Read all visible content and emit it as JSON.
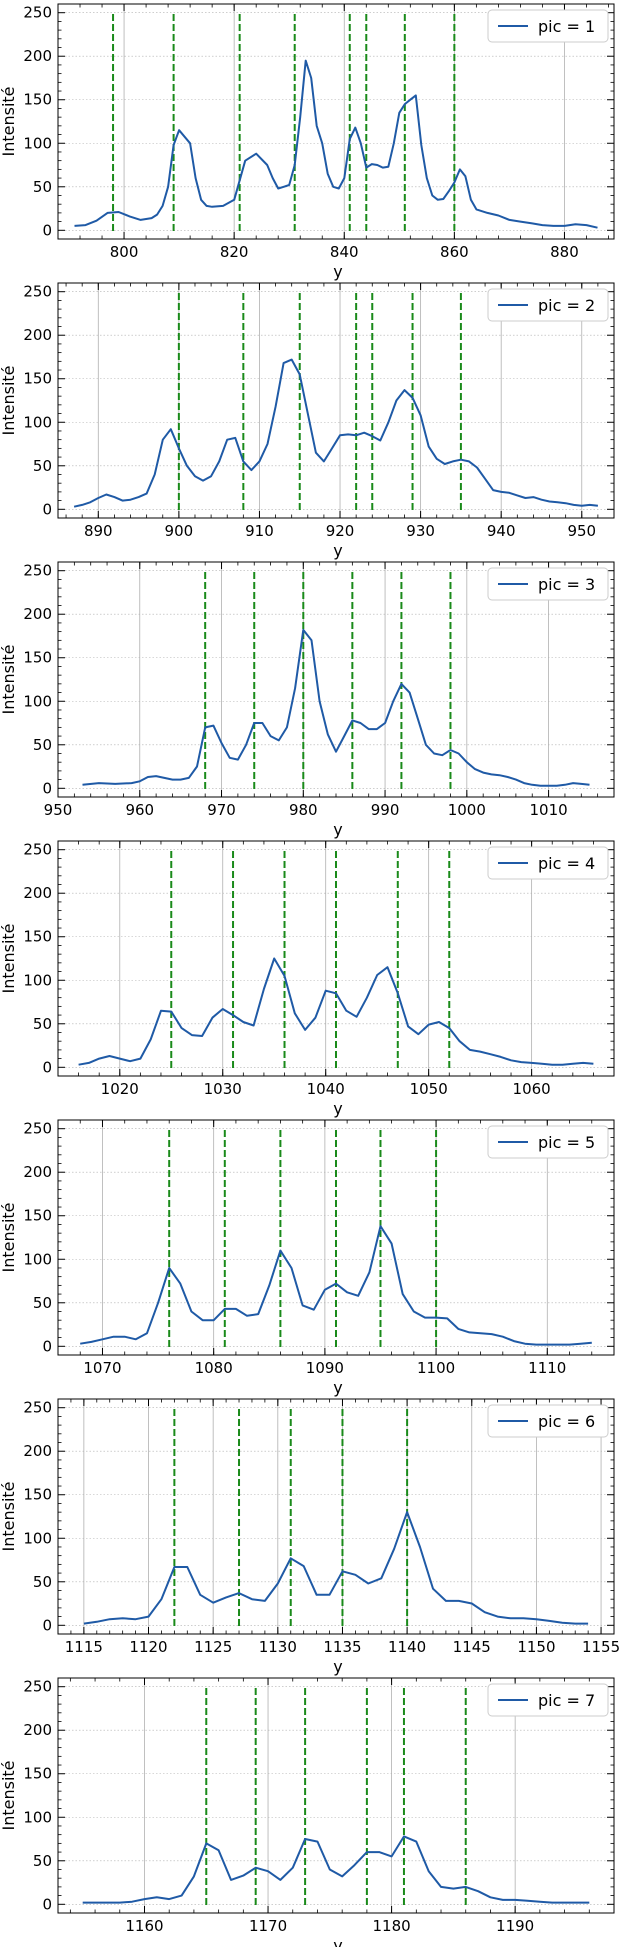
{
  "chart_data": [
    {
      "type": "line",
      "xlabel": "y",
      "ylabel": "Intensité",
      "legend": "pic = 1",
      "legend_position": "top-right",
      "grid": true,
      "xlim": [
        788,
        889
      ],
      "ylim": [
        -10,
        260
      ],
      "xticks": [
        800,
        820,
        840,
        860,
        880
      ],
      "yticks": [
        0,
        50,
        100,
        150,
        200,
        250
      ],
      "peaks": [
        798,
        809,
        821,
        831,
        841,
        844,
        851,
        860
      ],
      "series_color": "#1f5aa6",
      "peak_color": "#1a8a1a",
      "x": [
        791,
        793,
        795,
        797,
        799,
        801,
        803,
        805,
        806,
        807,
        808,
        809,
        810,
        812,
        813,
        814,
        815,
        816,
        818,
        820,
        822,
        824,
        826,
        827,
        828,
        829,
        830,
        831,
        832,
        833,
        834,
        835,
        836,
        837,
        838,
        839,
        840,
        841,
        842,
        843,
        844,
        845,
        846,
        847,
        848,
        849,
        850,
        851,
        852,
        853,
        854,
        855,
        856,
        857,
        858,
        859,
        860,
        861,
        862,
        863,
        864,
        866,
        868,
        870,
        872,
        874,
        876,
        878,
        880,
        882,
        884,
        886
      ],
      "y": [
        5,
        6,
        11,
        20,
        21,
        16,
        12,
        14,
        18,
        28,
        50,
        98,
        115,
        100,
        60,
        35,
        28,
        27,
        28,
        35,
        80,
        88,
        75,
        60,
        48,
        50,
        52,
        75,
        130,
        195,
        175,
        120,
        100,
        65,
        50,
        48,
        60,
        105,
        118,
        100,
        72,
        76,
        75,
        72,
        73,
        100,
        135,
        145,
        150,
        155,
        98,
        60,
        40,
        35,
        36,
        45,
        55,
        70,
        62,
        35,
        24,
        20,
        17,
        12,
        10,
        8,
        6,
        5,
        5,
        7,
        6,
        3
      ]
    },
    {
      "type": "line",
      "xlabel": "y",
      "ylabel": "Intensité",
      "legend": "pic = 2",
      "legend_position": "top-right",
      "grid": true,
      "xlim": [
        885,
        954
      ],
      "ylim": [
        -10,
        260
      ],
      "xticks": [
        890,
        900,
        910,
        920,
        930,
        940,
        950
      ],
      "yticks": [
        0,
        50,
        100,
        150,
        200,
        250
      ],
      "peaks": [
        900,
        908,
        915,
        922,
        924,
        929,
        935
      ],
      "series_color": "#1f5aa6",
      "peak_color": "#1a8a1a",
      "x": [
        887,
        888,
        889,
        890,
        891,
        892,
        893,
        894,
        895,
        896,
        897,
        898,
        899,
        900,
        901,
        902,
        903,
        904,
        905,
        906,
        907,
        908,
        909,
        910,
        911,
        912,
        913,
        914,
        915,
        916,
        917,
        918,
        919,
        920,
        921,
        922,
        923,
        924,
        925,
        926,
        927,
        928,
        929,
        930,
        931,
        932,
        933,
        934,
        935,
        936,
        937,
        938,
        939,
        940,
        941,
        942,
        943,
        944,
        945,
        946,
        947,
        948,
        949,
        950,
        951,
        952
      ],
      "y": [
        3,
        5,
        8,
        13,
        17,
        14,
        10,
        11,
        14,
        18,
        40,
        80,
        92,
        70,
        50,
        38,
        33,
        38,
        55,
        80,
        82,
        55,
        45,
        55,
        75,
        118,
        168,
        172,
        155,
        110,
        65,
        55,
        70,
        85,
        86,
        85,
        88,
        84,
        79,
        100,
        125,
        137,
        128,
        108,
        72,
        58,
        52,
        55,
        57,
        55,
        48,
        35,
        22,
        20,
        19,
        16,
        13,
        14,
        11,
        9,
        8,
        7,
        5,
        4,
        5,
        4
      ]
    },
    {
      "type": "line",
      "xlabel": "y",
      "ylabel": "Intensité",
      "legend": "pic = 3",
      "legend_position": "top-right",
      "grid": true,
      "xlim": [
        950,
        1018
      ],
      "ylim": [
        -10,
        260
      ],
      "xticks": [
        950,
        960,
        970,
        980,
        990,
        1000,
        1010
      ],
      "yticks": [
        0,
        50,
        100,
        150,
        200,
        250
      ],
      "peaks": [
        968,
        974,
        980,
        986,
        992,
        998
      ],
      "series_color": "#1f5aa6",
      "peak_color": "#1a8a1a",
      "x": [
        953,
        955,
        957,
        959,
        960,
        961,
        962,
        963,
        964,
        965,
        966,
        967,
        968,
        969,
        970,
        971,
        972,
        973,
        974,
        975,
        976,
        977,
        978,
        979,
        980,
        981,
        982,
        983,
        984,
        985,
        986,
        987,
        988,
        989,
        990,
        991,
        992,
        993,
        994,
        995,
        996,
        997,
        998,
        999,
        1000,
        1001,
        1002,
        1003,
        1004,
        1005,
        1006,
        1007,
        1008,
        1009,
        1010,
        1011,
        1012,
        1013,
        1014,
        1015
      ],
      "y": [
        4,
        6,
        5,
        6,
        8,
        13,
        14,
        12,
        10,
        10,
        12,
        25,
        70,
        72,
        52,
        35,
        33,
        50,
        75,
        75,
        60,
        55,
        70,
        115,
        182,
        170,
        100,
        62,
        42,
        60,
        78,
        75,
        68,
        68,
        75,
        100,
        120,
        110,
        80,
        50,
        40,
        38,
        44,
        40,
        30,
        22,
        18,
        16,
        15,
        13,
        10,
        6,
        4,
        3,
        3,
        3,
        4,
        6,
        5,
        4
      ]
    },
    {
      "type": "line",
      "xlabel": "y",
      "ylabel": "Intensité",
      "legend": "pic = 4",
      "legend_position": "top-right",
      "grid": true,
      "xlim": [
        1014,
        1068
      ],
      "ylim": [
        -10,
        260
      ],
      "xticks": [
        1020,
        1030,
        1040,
        1050,
        1060
      ],
      "yticks": [
        0,
        50,
        100,
        150,
        200,
        250
      ],
      "peaks": [
        1025,
        1031,
        1036,
        1041,
        1047,
        1052
      ],
      "series_color": "#1f5aa6",
      "peak_color": "#1a8a1a",
      "x": [
        1016,
        1017,
        1018,
        1019,
        1020,
        1021,
        1022,
        1023,
        1024,
        1025,
        1026,
        1027,
        1028,
        1029,
        1030,
        1031,
        1032,
        1033,
        1034,
        1035,
        1036,
        1037,
        1038,
        1039,
        1040,
        1041,
        1042,
        1043,
        1044,
        1045,
        1046,
        1047,
        1048,
        1049,
        1050,
        1051,
        1052,
        1053,
        1054,
        1055,
        1056,
        1057,
        1058,
        1059,
        1060,
        1061,
        1062,
        1063,
        1064,
        1065,
        1066
      ],
      "y": [
        3,
        5,
        10,
        13,
        10,
        7,
        10,
        32,
        65,
        64,
        45,
        37,
        36,
        57,
        67,
        60,
        52,
        48,
        90,
        125,
        105,
        62,
        43,
        57,
        88,
        85,
        65,
        58,
        80,
        106,
        115,
        85,
        47,
        38,
        49,
        52,
        45,
        30,
        20,
        18,
        15,
        12,
        8,
        6,
        5,
        4,
        3,
        3,
        4,
        5,
        4
      ]
    },
    {
      "type": "line",
      "xlabel": "y",
      "ylabel": "Intensité",
      "legend": "pic = 5",
      "legend_position": "top-right",
      "grid": true,
      "xlim": [
        1066,
        1116
      ],
      "ylim": [
        -10,
        260
      ],
      "xticks": [
        1070,
        1080,
        1090,
        1100,
        1110
      ],
      "yticks": [
        0,
        50,
        100,
        150,
        200,
        250
      ],
      "peaks": [
        1076,
        1081,
        1086,
        1091,
        1095,
        1100
      ],
      "series_color": "#1f5aa6",
      "peak_color": "#1a8a1a",
      "x": [
        1068,
        1069,
        1070,
        1071,
        1072,
        1073,
        1074,
        1075,
        1076,
        1077,
        1078,
        1079,
        1080,
        1081,
        1082,
        1083,
        1084,
        1085,
        1086,
        1087,
        1088,
        1089,
        1090,
        1091,
        1092,
        1093,
        1094,
        1095,
        1096,
        1097,
        1098,
        1099,
        1100,
        1101,
        1102,
        1103,
        1104,
        1105,
        1106,
        1107,
        1108,
        1109,
        1110,
        1111,
        1112,
        1113,
        1114
      ],
      "y": [
        3,
        5,
        8,
        11,
        11,
        8,
        15,
        50,
        90,
        72,
        40,
        30,
        30,
        43,
        43,
        35,
        37,
        70,
        110,
        90,
        47,
        42,
        65,
        72,
        62,
        58,
        85,
        138,
        118,
        60,
        40,
        33,
        33,
        32,
        20,
        16,
        15,
        14,
        11,
        6,
        3,
        2,
        2,
        2,
        2,
        3,
        4
      ]
    },
    {
      "type": "line",
      "xlabel": "y",
      "ylabel": "Intensité",
      "legend": "pic = 6",
      "legend_position": "top-right",
      "grid": true,
      "xlim": [
        1113,
        1156
      ],
      "ylim": [
        -10,
        260
      ],
      "xticks": [
        1115,
        1120,
        1125,
        1130,
        1135,
        1140,
        1145,
        1150,
        1155
      ],
      "yticks": [
        0,
        50,
        100,
        150,
        200,
        250
      ],
      "peaks": [
        1122,
        1127,
        1131,
        1135,
        1140
      ],
      "series_color": "#1f5aa6",
      "peak_color": "#1a8a1a",
      "x": [
        1115,
        1116,
        1117,
        1118,
        1119,
        1120,
        1121,
        1122,
        1123,
        1124,
        1125,
        1126,
        1127,
        1128,
        1129,
        1130,
        1131,
        1132,
        1133,
        1134,
        1135,
        1136,
        1137,
        1138,
        1139,
        1140,
        1141,
        1142,
        1143,
        1144,
        1145,
        1146,
        1147,
        1148,
        1149,
        1150,
        1151,
        1152,
        1153,
        1154
      ],
      "y": [
        2,
        4,
        7,
        8,
        7,
        10,
        30,
        67,
        67,
        35,
        26,
        32,
        37,
        30,
        28,
        48,
        77,
        68,
        35,
        35,
        62,
        58,
        48,
        54,
        88,
        130,
        90,
        42,
        28,
        28,
        25,
        15,
        10,
        8,
        8,
        7,
        5,
        3,
        2,
        2
      ]
    },
    {
      "type": "line",
      "xlabel": "y",
      "ylabel": "Intensité",
      "legend": "pic = 7",
      "legend_position": "top-right",
      "grid": true,
      "xlim": [
        1153,
        1198
      ],
      "ylim": [
        -10,
        260
      ],
      "xticks": [
        1160,
        1170,
        1180,
        1190
      ],
      "yticks": [
        0,
        50,
        100,
        150,
        200,
        250
      ],
      "peaks": [
        1165,
        1169,
        1173,
        1178,
        1181,
        1186
      ],
      "series_color": "#1f5aa6",
      "peak_color": "#1a8a1a",
      "x": [
        1155,
        1156,
        1157,
        1158,
        1159,
        1160,
        1161,
        1162,
        1163,
        1164,
        1165,
        1166,
        1167,
        1168,
        1169,
        1170,
        1171,
        1172,
        1173,
        1174,
        1175,
        1176,
        1177,
        1178,
        1179,
        1180,
        1181,
        1182,
        1183,
        1184,
        1185,
        1186,
        1187,
        1188,
        1189,
        1190,
        1191,
        1192,
        1193,
        1194,
        1195,
        1196
      ],
      "y": [
        2,
        2,
        2,
        2,
        3,
        6,
        8,
        6,
        10,
        32,
        70,
        62,
        28,
        33,
        42,
        38,
        28,
        42,
        75,
        72,
        40,
        32,
        45,
        60,
        60,
        55,
        78,
        72,
        38,
        20,
        18,
        20,
        15,
        8,
        5,
        5,
        4,
        3,
        2,
        2,
        2,
        2
      ]
    }
  ]
}
